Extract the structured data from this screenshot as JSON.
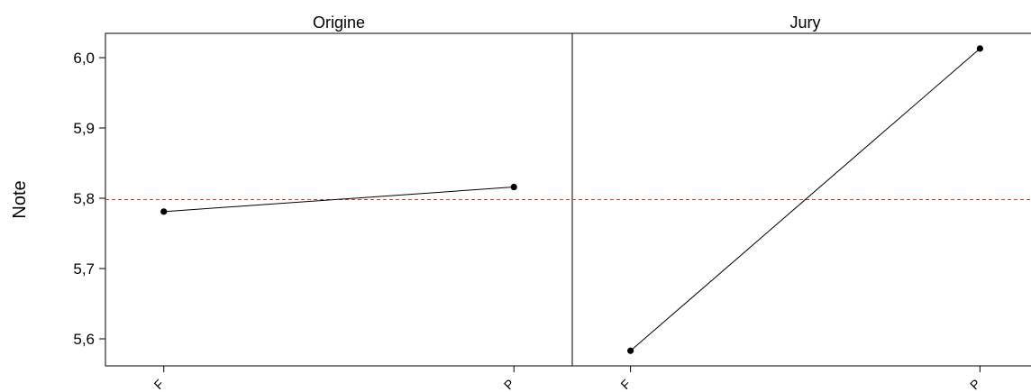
{
  "chart_data": {
    "type": "line",
    "ylabel": "Note",
    "ylim": [
      5.56,
      6.05
    ],
    "yticks": [
      5.6,
      5.7,
      5.8,
      5.9,
      6.0
    ],
    "ytick_labels": [
      "5,6",
      "5,7",
      "5,8",
      "5,9",
      "6,0"
    ],
    "grid": false,
    "reference_line": {
      "y": 5.798,
      "color": "#e0302d",
      "style": "dashed"
    },
    "line_color": "#000000",
    "marker_color": "#000000",
    "panels": [
      {
        "title": "Origine",
        "categories": [
          "F",
          "P"
        ],
        "values": [
          5.781,
          5.816
        ]
      },
      {
        "title": "Jury",
        "categories": [
          "F",
          "P"
        ],
        "values": [
          5.583,
          6.013
        ]
      }
    ]
  }
}
